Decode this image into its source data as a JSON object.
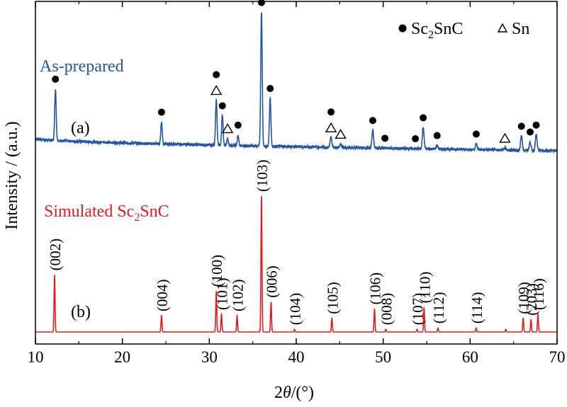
{
  "chart_data": {
    "type": "line",
    "xlabel_prefix": "2",
    "xlabel_theta": "θ",
    "xlabel_suffix": "/(°)",
    "ylabel": "Intensity / (a.u.)",
    "xlim": [
      10,
      70
    ],
    "xticks": [
      10,
      20,
      30,
      40,
      50,
      60,
      70
    ],
    "y_ticks_shown": false,
    "grid": false,
    "legend": {
      "placement": "top-right",
      "entries": [
        {
          "marker": "dot",
          "label_main": "Sc",
          "label_sub": "2",
          "label_tail": "SnC"
        },
        {
          "marker": "triangle",
          "label_main": "Sn",
          "label_sub": "",
          "label_tail": ""
        }
      ]
    },
    "series": [
      {
        "name": "As-prepared",
        "panel_label": "(a)",
        "color": "#2255a4",
        "baseline_start": 0.2,
        "baseline_end": 0.03,
        "peaks": [
          {
            "x": 12.3,
            "h": 0.73,
            "w": 0.12
          },
          {
            "x": 24.5,
            "h": 0.31,
            "w": 0.12
          },
          {
            "x": 30.8,
            "h": 0.64,
            "w": 0.12
          },
          {
            "x": 31.5,
            "h": 0.42,
            "w": 0.12
          },
          {
            "x": 32.1,
            "h": 0.1,
            "w": 0.12
          },
          {
            "x": 33.3,
            "h": 0.15,
            "w": 0.12
          },
          {
            "x": 36.0,
            "h": 1.9,
            "w": 0.12
          },
          {
            "x": 37.0,
            "h": 0.68,
            "w": 0.12
          },
          {
            "x": 44.0,
            "h": 0.14,
            "w": 0.14
          },
          {
            "x": 45.1,
            "h": 0.05,
            "w": 0.14
          },
          {
            "x": 48.8,
            "h": 0.25,
            "w": 0.14
          },
          {
            "x": 54.6,
            "h": 0.3,
            "w": 0.14
          },
          {
            "x": 56.2,
            "h": 0.05,
            "w": 0.14
          },
          {
            "x": 60.7,
            "h": 0.08,
            "w": 0.14
          },
          {
            "x": 64.0,
            "h": 0.03,
            "w": 0.14
          },
          {
            "x": 65.9,
            "h": 0.2,
            "w": 0.14
          },
          {
            "x": 66.9,
            "h": 0.12,
            "w": 0.14
          },
          {
            "x": 67.6,
            "h": 0.22,
            "w": 0.14
          }
        ],
        "markers": [
          {
            "type": "dot",
            "x": 12.3
          },
          {
            "type": "dot",
            "x": 24.5
          },
          {
            "type": "triangle",
            "x": 30.8
          },
          {
            "type": "dot",
            "x": 30.8
          },
          {
            "type": "dot",
            "x": 31.5
          },
          {
            "type": "triangle",
            "x": 32.1
          },
          {
            "type": "dot",
            "x": 33.3
          },
          {
            "type": "dot",
            "x": 36.0
          },
          {
            "type": "dot",
            "x": 37.0
          },
          {
            "type": "triangle",
            "x": 44.0
          },
          {
            "type": "dot",
            "x": 44.0
          },
          {
            "type": "triangle",
            "x": 45.1
          },
          {
            "type": "dot",
            "x": 48.8
          },
          {
            "type": "dot",
            "x": 50.2
          },
          {
            "type": "dot",
            "x": 53.7
          },
          {
            "type": "dot",
            "x": 54.6
          },
          {
            "type": "dot",
            "x": 56.2
          },
          {
            "type": "dot",
            "x": 60.7
          },
          {
            "type": "triangle",
            "x": 64.0
          },
          {
            "type": "dot",
            "x": 65.9
          },
          {
            "type": "dot",
            "x": 66.9
          },
          {
            "type": "dot",
            "x": 67.6
          }
        ]
      },
      {
        "name_main": "Simulated Sc",
        "name_sub": "2",
        "name_tail": "SnC",
        "panel_label": "(b)",
        "color": "#e41a1c",
        "peaks": [
          {
            "x": 12.2,
            "h": 0.42,
            "hkl": "(002)"
          },
          {
            "x": 24.5,
            "h": 0.12,
            "hkl": "(004)"
          },
          {
            "x": 30.8,
            "h": 0.3,
            "hkl": "(100)"
          },
          {
            "x": 31.4,
            "h": 0.13,
            "hkl": "(101)"
          },
          {
            "x": 33.2,
            "h": 0.12,
            "hkl": "(102)"
          },
          {
            "x": 36.0,
            "h": 1.0,
            "hkl": "(103)"
          },
          {
            "x": 37.1,
            "h": 0.22,
            "hkl": "(006)"
          },
          {
            "x": 39.8,
            "h": 0.02,
            "hkl": "(104)"
          },
          {
            "x": 44.1,
            "h": 0.1,
            "hkl": "(105)"
          },
          {
            "x": 49.0,
            "h": 0.17,
            "hkl": "(106)"
          },
          {
            "x": 50.3,
            "h": 0.02,
            "hkl": "(008)"
          },
          {
            "x": 53.9,
            "h": 0.02,
            "hkl": "(107)"
          },
          {
            "x": 54.7,
            "h": 0.18,
            "hkl": "(110)"
          },
          {
            "x": 56.3,
            "h": 0.03,
            "hkl": "(112)"
          },
          {
            "x": 60.7,
            "h": 0.03,
            "hkl": "(114)"
          },
          {
            "x": 64.1,
            "h": 0.02
          },
          {
            "x": 66.1,
            "h": 0.1,
            "hkl": "(109)"
          },
          {
            "x": 67.0,
            "h": 0.09,
            "hkl": "(203)"
          },
          {
            "x": 67.8,
            "h": 0.13,
            "hkl": "(116)"
          }
        ]
      }
    ]
  }
}
